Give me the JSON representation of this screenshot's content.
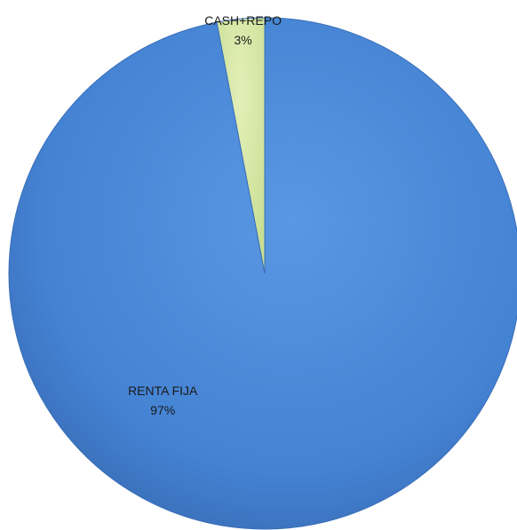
{
  "chart_data": {
    "type": "pie",
    "title": "",
    "start_angle_deg": 0,
    "direction": "clockwise",
    "slices": [
      {
        "label": "RENTA FIJA",
        "value": 97,
        "percent_label": "97%",
        "color": "#4a88d8"
      },
      {
        "label": "CASH+REPO",
        "value": 3,
        "percent_label": "3%",
        "color": "#d9e8a8"
      }
    ],
    "legend": "none",
    "data_labels": "label-and-percent"
  }
}
